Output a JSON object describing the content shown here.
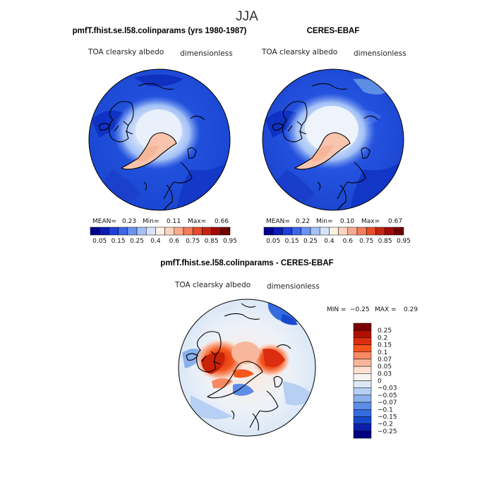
{
  "figure": {
    "title": "JJA",
    "panels": [
      {
        "id": "model",
        "title": "pmfT.fhist.se.l58.colinparams (yrs 1980-1987)",
        "variable": "TOA clearsky albedo",
        "units": "dimensionless",
        "mean_label": "MEAN=",
        "mean": "0.23",
        "min_label": "Min=",
        "min": "0.11",
        "max_label": "Max=",
        "max": "0.66"
      },
      {
        "id": "obs",
        "title": "CERES-EBAF",
        "variable": "TOA clearsky albedo",
        "units": "dimensionless",
        "mean_label": "MEAN=",
        "mean": "0.22",
        "min_label": "Min=",
        "min": "0.10",
        "max_label": "Max=",
        "max": "0.67"
      }
    ],
    "diff": {
      "title": "pmfT.fhist.se.l58.colinparams - CERES-EBAF",
      "variable": "TOA clearsky albedo",
      "units": "dimensionless",
      "min_label": "MIN =",
      "min": "−0.25",
      "max_label": "MAX =",
      "max": "0.29"
    }
  },
  "colorbar_top": {
    "colors": [
      "#00008b",
      "#0a1cb4",
      "#1f3fd6",
      "#3a66e8",
      "#6b93f0",
      "#a4c1f6",
      "#d6e5fb",
      "#fff1e8",
      "#fcd5c2",
      "#f8ab8c",
      "#f37e5a",
      "#e54d2c",
      "#c62313",
      "#a00a05",
      "#6e0000"
    ],
    "labels": [
      "0.05",
      "0.15",
      "0.25",
      "0.4",
      "0.6",
      "0.75",
      "0.85",
      "0.95"
    ]
  },
  "colorbar_diff": {
    "colors": [
      "#7a0000",
      "#b01000",
      "#db2d0f",
      "#f4561e",
      "#f78a62",
      "#f8b79b",
      "#fde0d2",
      "#f7f4f2",
      "#dce8f7",
      "#b6cff3",
      "#8ab0ed",
      "#5e8de6",
      "#356cde",
      "#1748cc",
      "#0a20a8",
      "#000080"
    ],
    "labels": [
      "0.25",
      "0.2",
      "0.15",
      "0.1",
      "0.07",
      "0.05",
      "0.03",
      "0",
      "−0.03",
      "−0.05",
      "−0.07",
      "−0.1",
      "−0.15",
      "−0.2",
      "−0.25"
    ]
  }
}
